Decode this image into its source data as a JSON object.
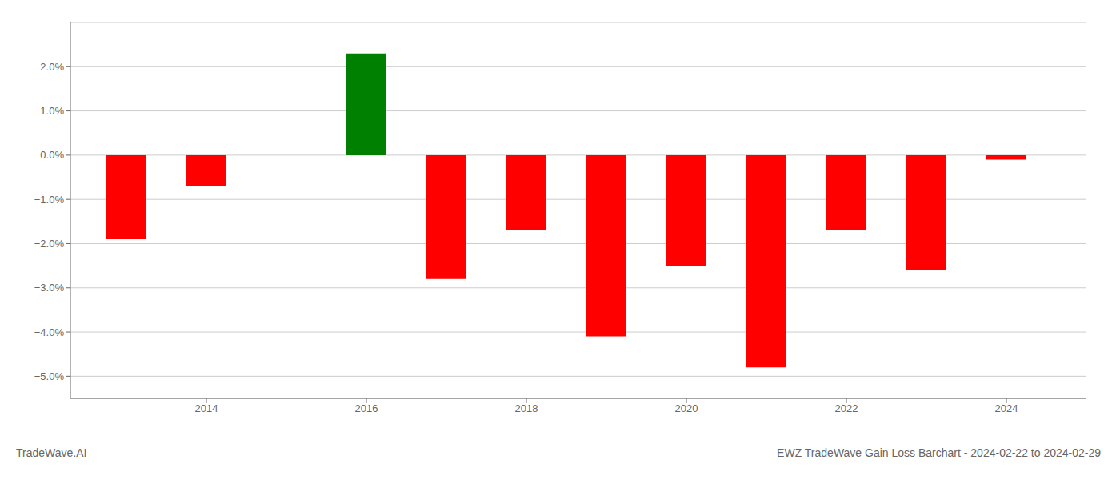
{
  "chart_data": {
    "type": "bar",
    "title": "EWZ TradeWave Gain Loss Barchart - 2024-02-22 to 2024-02-29",
    "annotations": [
      "TradeWave.AI"
    ],
    "x": [
      2013,
      2014,
      2016,
      2017,
      2018,
      2019,
      2020,
      2021,
      2022,
      2023,
      2024
    ],
    "values": [
      -1.9,
      -0.7,
      2.3,
      -2.8,
      -1.7,
      -4.1,
      -2.5,
      -4.8,
      -1.7,
      -2.6,
      -0.1
    ],
    "colors": [
      "#ff0000",
      "#ff0000",
      "#008000",
      "#ff0000",
      "#ff0000",
      "#ff0000",
      "#ff0000",
      "#ff0000",
      "#ff0000",
      "#ff0000",
      "#ff0000"
    ],
    "xlim": [
      2012.3,
      2025.0
    ],
    "xticks": [
      2014,
      2016,
      2018,
      2020,
      2022,
      2024
    ],
    "ylim": [
      -5.5,
      3.0
    ],
    "yticks": [
      {
        "value": -5.0,
        "label": "−5.0%"
      },
      {
        "value": -4.0,
        "label": "−4.0%"
      },
      {
        "value": -3.0,
        "label": "−3.0%"
      },
      {
        "value": -2.0,
        "label": "−2.0%"
      },
      {
        "value": -1.0,
        "label": "−1.0%"
      },
      {
        "value": 0.0,
        "label": "0.0%"
      },
      {
        "value": 1.0,
        "label": "1.0%"
      },
      {
        "value": 2.0,
        "label": "2.0%"
      }
    ],
    "grid": true
  }
}
